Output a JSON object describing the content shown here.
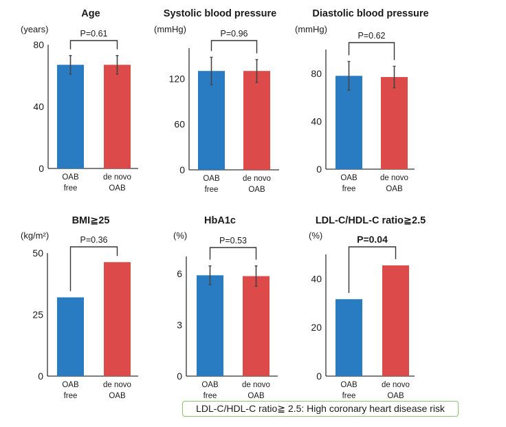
{
  "colors": {
    "oab_free": "#2a7cc2",
    "de_novo_oab": "#dc4a4a",
    "axis": "#333333",
    "error_bar": "#444444",
    "note_border": "#8cc46e"
  },
  "note": "LDL-C/HDL-C ratio≧ 2.5: High coronary heart disease risk",
  "chart_data": [
    {
      "type": "bar",
      "title": "Age",
      "ylabel": "(years)",
      "categories": [
        [
          "OAB",
          "free"
        ],
        [
          "de novo",
          "OAB"
        ]
      ],
      "values": [
        67,
        67
      ],
      "errors": [
        6,
        6
      ],
      "yticks": [
        0,
        40,
        80
      ],
      "ylim": [
        0,
        80
      ],
      "p_value": "P=0.61",
      "p_significant": false
    },
    {
      "type": "bar",
      "title": "Systolic blood pressure",
      "ylabel": "(mmHg)",
      "categories": [
        [
          "OAB",
          "free"
        ],
        [
          "de novo",
          "OAB"
        ]
      ],
      "values": [
        130,
        130
      ],
      "errors": [
        18,
        15
      ],
      "yticks": [
        0,
        60,
        120
      ],
      "ylim": [
        0,
        160
      ],
      "p_value": "P=0.96",
      "p_significant": false
    },
    {
      "type": "bar",
      "title": "Diastolic blood pressure",
      "ylabel": "(mmHg)",
      "categories": [
        [
          "OAB",
          "free"
        ],
        [
          "de novo",
          "OAB"
        ]
      ],
      "values": [
        78,
        77
      ],
      "errors": [
        12,
        9
      ],
      "yticks": [
        0,
        40,
        80
      ],
      "ylim": [
        0,
        100
      ],
      "p_value": "P=0.62",
      "p_significant": false
    },
    {
      "type": "bar",
      "title": "BMI≧25",
      "ylabel": "(kg/m²)",
      "categories": [
        [
          "OAB",
          "free"
        ],
        [
          "de novo",
          "OAB"
        ]
      ],
      "values": [
        32,
        46.3
      ],
      "errors": [
        null,
        null
      ],
      "yticks": [
        0,
        25,
        50
      ],
      "ylim": [
        0,
        50
      ],
      "p_value": "P=0.36",
      "p_significant": false
    },
    {
      "type": "bar",
      "title": "HbA1c",
      "ylabel": "(%)",
      "categories": [
        [
          "OAB",
          "free"
        ],
        [
          "de novo",
          "OAB"
        ]
      ],
      "values": [
        5.9,
        5.85
      ],
      "errors": [
        0.55,
        0.6
      ],
      "yticks": [
        0,
        3,
        6
      ],
      "ylim": [
        0,
        7
      ],
      "p_value": "P=0.53",
      "p_significant": false
    },
    {
      "type": "bar",
      "title": "LDL-C/HDL-C ratio≧2.5",
      "ylabel": "(%)",
      "categories": [
        [
          "OAB",
          "free"
        ],
        [
          "de novo",
          "OAB"
        ]
      ],
      "values": [
        31.6,
        45.5
      ],
      "errors": [
        null,
        null
      ],
      "yticks": [
        0,
        20,
        40
      ],
      "ylim": [
        0,
        50
      ],
      "p_value": "P=0.04",
      "p_significant": true
    }
  ]
}
